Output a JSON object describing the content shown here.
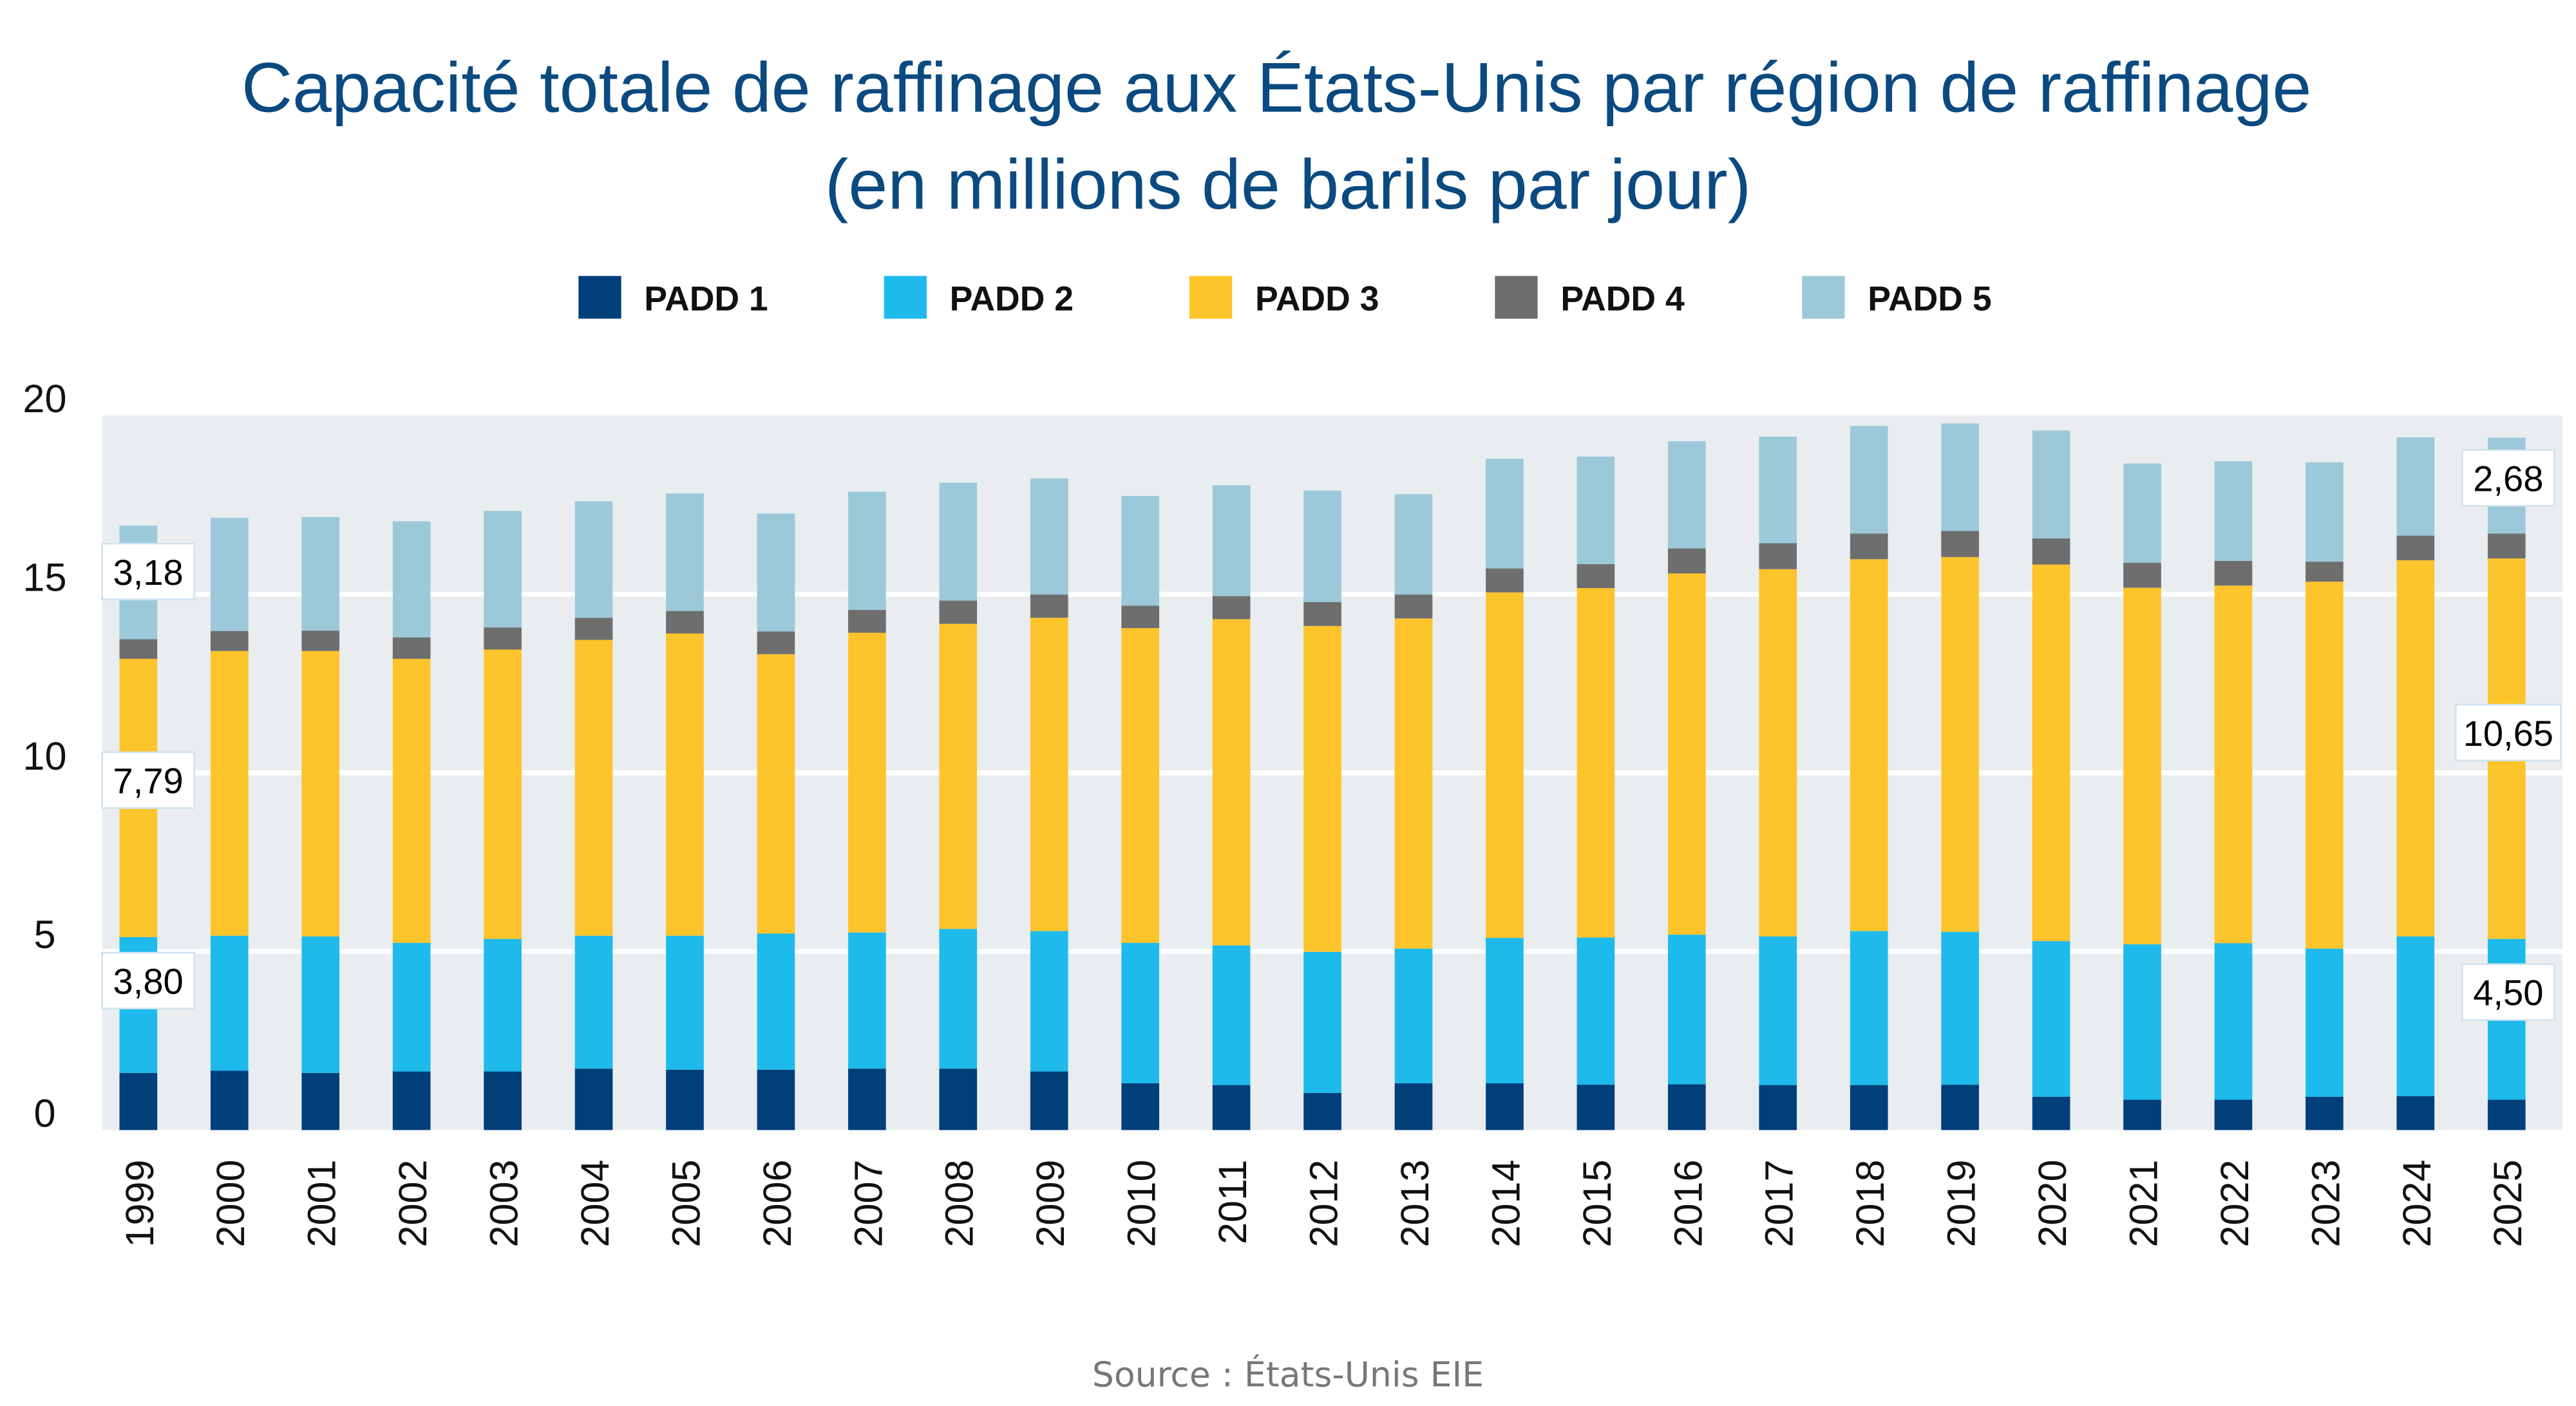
{
  "chart_data": {
    "type": "bar",
    "stacked": true,
    "title": "Capacité totale de raffinage aux États-Unis par région de raffinage",
    "subtitle": "(en millions de barils par jour)",
    "xlabel": "",
    "ylabel": "",
    "ylim": [
      0,
      20
    ],
    "yticks": [
      0,
      5,
      10,
      15,
      20
    ],
    "grid": true,
    "legend_position": "top",
    "categories": [
      "1999",
      "2000",
      "2001",
      "2002",
      "2003",
      "2004",
      "2005",
      "2006",
      "2007",
      "2008",
      "2009",
      "2010",
      "2011",
      "2012",
      "2013",
      "2014",
      "2015",
      "2016",
      "2017",
      "2018",
      "2019",
      "2020",
      "2021",
      "2022",
      "2023",
      "2024",
      "2025"
    ],
    "series": [
      {
        "name": "PADD 1",
        "color": "#003f7a",
        "values": [
          1.6,
          1.66,
          1.6,
          1.64,
          1.64,
          1.72,
          1.69,
          1.69,
          1.72,
          1.72,
          1.64,
          1.31,
          1.26,
          1.04,
          1.31,
          1.31,
          1.27,
          1.28,
          1.26,
          1.26,
          1.27,
          0.93,
          0.85,
          0.85,
          0.93,
          0.95,
          0.85
        ]
      },
      {
        "name": "PADD 2",
        "color": "#1ebaec",
        "values": [
          3.8,
          3.78,
          3.82,
          3.6,
          3.71,
          3.72,
          3.75,
          3.81,
          3.81,
          3.91,
          3.93,
          3.93,
          3.91,
          3.95,
          3.77,
          4.07,
          4.12,
          4.19,
          4.16,
          4.31,
          4.28,
          4.36,
          4.35,
          4.38,
          4.15,
          4.47,
          4.5
        ]
      },
      {
        "name": "PADD 3",
        "color": "#fdc42b",
        "values": [
          7.79,
          7.97,
          7.99,
          7.95,
          8.1,
          8.28,
          8.46,
          7.82,
          8.39,
          8.54,
          8.77,
          8.81,
          9.13,
          9.12,
          9.24,
          9.67,
          9.78,
          10.11,
          10.28,
          10.41,
          10.49,
          10.54,
          9.98,
          10.01,
          10.27,
          10.53,
          10.65
        ]
      },
      {
        "name": "PADD 4",
        "color": "#6e6e6e",
        "values": [
          0.55,
          0.56,
          0.57,
          0.6,
          0.62,
          0.62,
          0.63,
          0.64,
          0.64,
          0.65,
          0.65,
          0.63,
          0.65,
          0.67,
          0.67,
          0.67,
          0.67,
          0.7,
          0.73,
          0.72,
          0.73,
          0.73,
          0.7,
          0.69,
          0.56,
          0.69,
          0.7
        ]
      },
      {
        "name": "PADD 5",
        "color": "#9bc9d9",
        "values": [
          3.18,
          3.17,
          3.18,
          3.25,
          3.26,
          3.26,
          3.29,
          3.3,
          3.31,
          3.3,
          3.25,
          3.07,
          3.1,
          3.12,
          2.81,
          3.07,
          3.01,
          3.0,
          2.98,
          3.01,
          3.01,
          3.02,
          2.78,
          2.79,
          2.78,
          2.75,
          2.68
        ]
      }
    ],
    "data_labels": {
      "first": {
        "category": "1999",
        "padd2": "3,80",
        "padd3": "7,79",
        "padd5": "3,18"
      },
      "last": {
        "category": "2025",
        "padd2": "4,50",
        "padd3": "10,65",
        "padd5": "2,68"
      }
    },
    "plot_background": "#e9edf0",
    "source": "Source : États-Unis EIE"
  }
}
